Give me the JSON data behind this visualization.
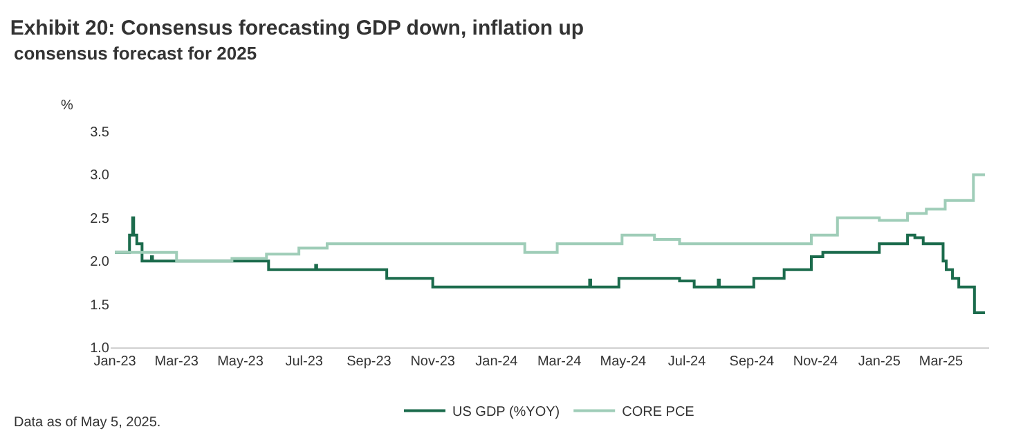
{
  "chart_data": {
    "type": "step",
    "title": "Exhibit 20: Consensus forecasting GDP down, inflation up",
    "subtitle": "consensus forecast for 2025",
    "ylabel": "%",
    "annotations": [
      "Data as of May 5, 2025."
    ],
    "series": [
      {
        "name": "US GDP (%YOY)",
        "color": "#1b6b4c",
        "x": [
          "2023-01-01",
          "2023-01-15",
          "2023-01-18",
          "2023-01-19",
          "2023-01-22",
          "2023-01-27",
          "2023-02-05",
          "2023-02-06",
          "2023-05-28",
          "2023-07-12",
          "2023-07-13",
          "2023-09-18",
          "2023-11-01",
          "2024-03-30",
          "2024-03-31",
          "2024-04-27",
          "2024-06-24",
          "2024-07-08",
          "2024-07-31",
          "2024-08-01",
          "2024-09-03",
          "2024-10-02",
          "2024-10-28",
          "2024-11-08",
          "2025-01-01",
          "2025-01-28",
          "2025-02-04",
          "2025-02-12",
          "2025-03-03",
          "2025-03-06",
          "2025-03-12",
          "2025-03-18",
          "2025-04-02",
          "2025-04-12"
        ],
        "values": [
          2.1,
          2.3,
          2.5,
          2.3,
          2.2,
          2.0,
          2.05,
          2.0,
          1.9,
          1.95,
          1.9,
          1.8,
          1.7,
          1.78,
          1.7,
          1.8,
          1.77,
          1.7,
          1.78,
          1.7,
          1.8,
          1.9,
          2.05,
          2.1,
          2.2,
          2.3,
          2.27,
          2.2,
          2.0,
          1.9,
          1.8,
          1.7,
          1.4,
          1.4
        ]
      },
      {
        "name": "CORE PCE",
        "color": "#9fcdb8",
        "x": [
          "2023-01-01",
          "2023-03-01",
          "2023-04-23",
          "2023-05-26",
          "2023-06-26",
          "2023-07-23",
          "2024-01-28",
          "2024-02-28",
          "2024-04-30",
          "2024-05-31",
          "2024-06-24",
          "2024-10-28",
          "2024-11-22",
          "2025-01-01",
          "2025-01-28",
          "2025-02-15",
          "2025-03-05",
          "2025-04-01",
          "2025-04-12"
        ],
        "values": [
          2.1,
          2.0,
          2.03,
          2.08,
          2.15,
          2.2,
          2.1,
          2.2,
          2.3,
          2.25,
          2.2,
          2.3,
          2.5,
          2.47,
          2.55,
          2.6,
          2.7,
          3.0,
          3.0
        ]
      }
    ],
    "xlim": [
      "2022-12-28",
      "2025-04-16"
    ],
    "xticks": [
      {
        "value": "2023-01-01",
        "label": "Jan-23"
      },
      {
        "value": "2023-03-01",
        "label": "Mar-23"
      },
      {
        "value": "2023-05-01",
        "label": "May-23"
      },
      {
        "value": "2023-07-01",
        "label": "Jul-23"
      },
      {
        "value": "2023-09-01",
        "label": "Sep-23"
      },
      {
        "value": "2023-11-01",
        "label": "Nov-23"
      },
      {
        "value": "2024-01-01",
        "label": "Jan-24"
      },
      {
        "value": "2024-03-01",
        "label": "Mar-24"
      },
      {
        "value": "2024-05-01",
        "label": "May-24"
      },
      {
        "value": "2024-07-01",
        "label": "Jul-24"
      },
      {
        "value": "2024-09-01",
        "label": "Sep-24"
      },
      {
        "value": "2024-11-01",
        "label": "Nov-24"
      },
      {
        "value": "2025-01-01",
        "label": "Jan-25"
      },
      {
        "value": "2025-03-01",
        "label": "Mar-25"
      }
    ],
    "ylim": [
      1.0,
      3.5
    ],
    "yticks": [
      {
        "value": 1.0,
        "label": "1.0"
      },
      {
        "value": 1.5,
        "label": "1.5"
      },
      {
        "value": 2.0,
        "label": "2.0"
      },
      {
        "value": 2.5,
        "label": "2.5"
      },
      {
        "value": 3.0,
        "label": "3.0"
      },
      {
        "value": 3.5,
        "label": "3.5"
      }
    ],
    "legend": "bottom",
    "marker": "none",
    "line_style": "solid"
  }
}
